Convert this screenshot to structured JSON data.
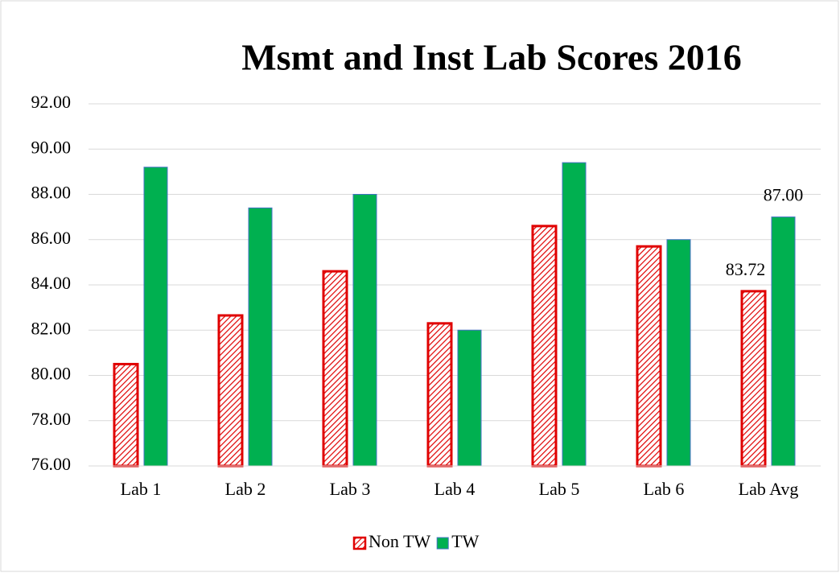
{
  "chart_data": {
    "type": "bar",
    "title": "Msmt and Inst Lab Scores 2016",
    "categories": [
      "Lab 1",
      "Lab 2",
      "Lab 3",
      "Lab 4",
      "Lab 5",
      "Lab 6",
      "Lab Avg"
    ],
    "series": [
      {
        "name": "Non TW",
        "color": "#e00000",
        "hatch": true,
        "values": [
          80.5,
          82.65,
          84.6,
          82.3,
          86.6,
          85.7,
          83.72
        ],
        "value_labels": [
          null,
          null,
          null,
          null,
          null,
          null,
          "83.72"
        ]
      },
      {
        "name": "TW",
        "color": "#00b050",
        "values": [
          89.2,
          87.4,
          88.0,
          82.0,
          89.4,
          86.0,
          87.0
        ],
        "value_labels": [
          null,
          null,
          null,
          null,
          null,
          null,
          "87.00"
        ]
      }
    ],
    "ylim": [
      76,
      92
    ],
    "yticks": [
      {
        "value": 76,
        "label": "76.00"
      },
      {
        "value": 78,
        "label": "78.00"
      },
      {
        "value": 80,
        "label": "80.00"
      },
      {
        "value": 82,
        "label": "82.00"
      },
      {
        "value": 84,
        "label": "84.00"
      },
      {
        "value": 86,
        "label": "86.00"
      },
      {
        "value": 88,
        "label": "88.00"
      },
      {
        "value": 90,
        "label": "90.00"
      },
      {
        "value": 92,
        "label": "92.00"
      }
    ],
    "grid": true,
    "legend": "bottom"
  }
}
